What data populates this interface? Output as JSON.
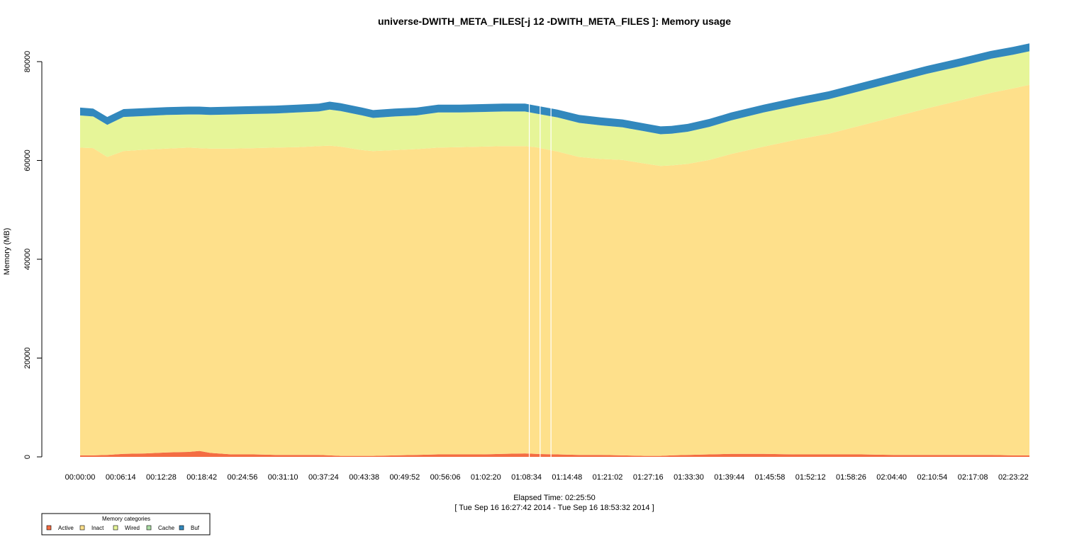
{
  "chart_data": {
    "type": "area",
    "title": "universe-DWITH_META_FILES[-j 12 -DWITH_META_FILES ]: Memory usage",
    "xlabel": "Elapsed Time: 02:25:50",
    "xlabel_sub": "[ Tue Sep 16 16:27:42 2014 - Tue Sep 16 18:53:32 2014 ]",
    "ylabel": "Memory (MB)",
    "ylim": [
      0,
      80000
    ],
    "y_ticks": [
      0,
      20000,
      40000,
      60000,
      80000
    ],
    "x_range_seconds": [
      0,
      8750
    ],
    "x_ticks": [
      {
        "t": 0,
        "label": "00:00:00"
      },
      {
        "t": 374,
        "label": "00:06:14"
      },
      {
        "t": 748,
        "label": "00:12:28"
      },
      {
        "t": 1122,
        "label": "00:18:42"
      },
      {
        "t": 1496,
        "label": "00:24:56"
      },
      {
        "t": 1870,
        "label": "00:31:10"
      },
      {
        "t": 2244,
        "label": "00:37:24"
      },
      {
        "t": 2618,
        "label": "00:43:38"
      },
      {
        "t": 2992,
        "label": "00:49:52"
      },
      {
        "t": 3366,
        "label": "00:56:06"
      },
      {
        "t": 3740,
        "label": "01:02:20"
      },
      {
        "t": 4114,
        "label": "01:08:34"
      },
      {
        "t": 4488,
        "label": "01:14:48"
      },
      {
        "t": 4862,
        "label": "01:21:02"
      },
      {
        "t": 5236,
        "label": "01:27:16"
      },
      {
        "t": 5610,
        "label": "01:33:30"
      },
      {
        "t": 5984,
        "label": "01:39:44"
      },
      {
        "t": 6358,
        "label": "01:45:58"
      },
      {
        "t": 6732,
        "label": "01:52:12"
      },
      {
        "t": 7106,
        "label": "01:58:26"
      },
      {
        "t": 7480,
        "label": "02:04:40"
      },
      {
        "t": 7854,
        "label": "02:10:54"
      },
      {
        "t": 8228,
        "label": "02:17:08"
      },
      {
        "t": 8602,
        "label": "02:23:22"
      }
    ],
    "x": [
      0,
      120,
      250,
      400,
      600,
      800,
      1000,
      1100,
      1200,
      1400,
      1600,
      1800,
      2000,
      2200,
      2300,
      2400,
      2600,
      2700,
      2900,
      3100,
      3300,
      3500,
      3700,
      3900,
      4100,
      4200,
      4400,
      4600,
      4800,
      5000,
      5200,
      5350,
      5450,
      5600,
      5800,
      6000,
      6300,
      6600,
      6900,
      7200,
      7500,
      7800,
      8100,
      8400,
      8600,
      8750
    ],
    "series": [
      {
        "name": "Active",
        "color": "#f46d43",
        "values": [
          300,
          300,
          400,
          600,
          700,
          900,
          1000,
          1200,
          800,
          500,
          500,
          400,
          400,
          400,
          300,
          200,
          200,
          200,
          300,
          400,
          500,
          500,
          500,
          600,
          700,
          600,
          500,
          400,
          400,
          300,
          200,
          200,
          300,
          400,
          500,
          600,
          600,
          500,
          500,
          500,
          400,
          400,
          400,
          400,
          300,
          300
        ]
      },
      {
        "name": "Inact",
        "color": "#fee08b",
        "values": [
          62300,
          62200,
          60300,
          61300,
          61500,
          61500,
          61600,
          61300,
          61600,
          61900,
          62000,
          62200,
          62300,
          62500,
          62700,
          62600,
          61900,
          61700,
          61800,
          61900,
          62100,
          62200,
          62300,
          62300,
          62200,
          62100,
          61300,
          60300,
          59900,
          59800,
          59200,
          58700,
          58700,
          58900,
          59600,
          60700,
          62200,
          63700,
          64900,
          66600,
          68400,
          70100,
          71700,
          73300,
          74300,
          75000
        ]
      },
      {
        "name": "Wired",
        "color": "#e6f598",
        "values": [
          6500,
          6400,
          6500,
          6900,
          6800,
          6800,
          6700,
          6800,
          6800,
          6900,
          6900,
          6900,
          7000,
          7000,
          7300,
          7200,
          7000,
          6700,
          6800,
          6800,
          7100,
          7000,
          7000,
          7000,
          7000,
          6800,
          6900,
          6900,
          6800,
          6600,
          6500,
          6400,
          6400,
          6500,
          6700,
          6800,
          6900,
          6900,
          7000,
          7000,
          7000,
          7000,
          6900,
          6900,
          6800,
          6800
        ]
      },
      {
        "name": "Cache",
        "color": "#abdda4",
        "values": [
          0,
          0,
          0,
          0,
          0,
          0,
          0,
          0,
          0,
          0,
          0,
          0,
          0,
          0,
          0,
          0,
          0,
          0,
          0,
          0,
          0,
          0,
          0,
          0,
          0,
          0,
          0,
          0,
          0,
          0,
          0,
          0,
          0,
          0,
          0,
          0,
          0,
          0,
          0,
          0,
          0,
          0,
          0,
          0,
          0,
          0
        ]
      },
      {
        "name": "Buf",
        "color": "#3288bd",
        "values": [
          1600,
          1600,
          1600,
          1600,
          1600,
          1600,
          1600,
          1600,
          1600,
          1600,
          1600,
          1600,
          1600,
          1600,
          1600,
          1600,
          1600,
          1600,
          1600,
          1600,
          1600,
          1600,
          1600,
          1600,
          1600,
          1600,
          1600,
          1600,
          1600,
          1600,
          1600,
          1600,
          1600,
          1600,
          1600,
          1600,
          1600,
          1600,
          1600,
          1600,
          1600,
          1600,
          1600,
          1600,
          1600,
          1600
        ]
      }
    ],
    "gaps_seconds": [
      4140,
      4240,
      4340
    ],
    "legend": {
      "title": "Memory categories",
      "placement": "bottom-left",
      "items": [
        "Active",
        "Inact",
        "Wired",
        "Cache",
        "Buf"
      ]
    },
    "grid": false
  }
}
